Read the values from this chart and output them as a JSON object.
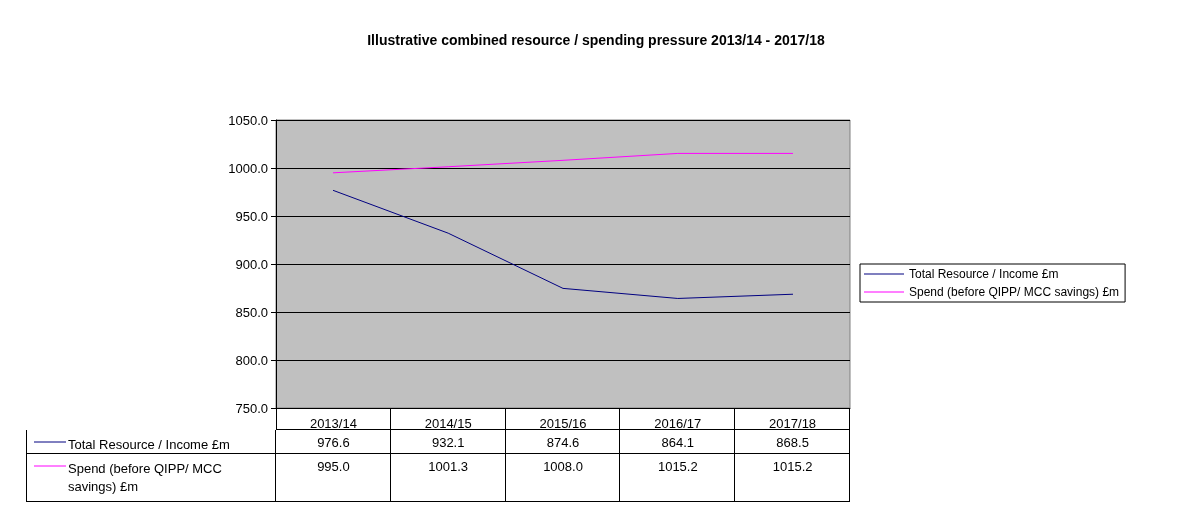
{
  "chart_data": {
    "type": "line",
    "title": "Illustrative combined resource / spending pressure 2013/14 - 2017/18",
    "categories": [
      "2013/14",
      "2014/15",
      "2015/16",
      "2016/17",
      "2017/18"
    ],
    "series": [
      {
        "name": "Total Resource / Income £m",
        "color": "#000080",
        "values": [
          976.6,
          932.1,
          874.6,
          864.1,
          868.5
        ],
        "value_labels": [
          "976.6",
          "932.1",
          "874.6",
          "864.1",
          "868.5"
        ]
      },
      {
        "name": "Spend (before QIPP/ MCC savings) £m",
        "color": "#ff00ff",
        "values": [
          995.0,
          1001.3,
          1008.0,
          1015.2,
          1015.2
        ],
        "value_labels": [
          "995.0",
          "1001.3",
          "1008.0",
          "1015.2",
          "1015.2"
        ]
      }
    ],
    "ylim": [
      750,
      1050
    ],
    "yticks": [
      {
        "value": 750,
        "label": "750.0"
      },
      {
        "value": 800,
        "label": "800.0"
      },
      {
        "value": 850,
        "label": "850.0"
      },
      {
        "value": 900,
        "label": "900.0"
      },
      {
        "value": 950,
        "label": "950.0"
      },
      {
        "value": 1000,
        "label": "1000.0"
      },
      {
        "value": 1050,
        "label": "1050.0"
      }
    ],
    "grid": "y",
    "legend": "right",
    "marker": "none",
    "line_style": "solid"
  }
}
